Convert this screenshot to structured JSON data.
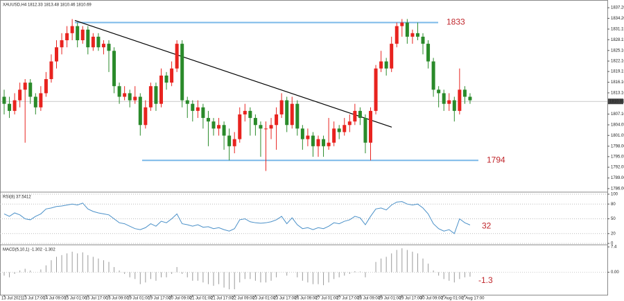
{
  "chart_data": [
    {
      "type": "candlestick",
      "title": "XAUUSD,H4 1812.33 1813.48 1810.46 1810.69",
      "categories": [
        "13 Jul 2021",
        null,
        null,
        null,
        "13 Jul 17:00",
        null,
        null,
        null,
        "14 Jul 09:00",
        null,
        null,
        null,
        "15 Jul 01:00",
        null,
        null,
        null,
        "15 Jul 17:00",
        null,
        null,
        null,
        "16 Jul 09:00",
        null,
        null,
        null,
        "19 Jul 01:00",
        null,
        null,
        null,
        "19 Jul 17:00",
        null,
        null,
        null,
        "20 Jul 09:00",
        null,
        null,
        null,
        "21 Jul 01:00",
        null,
        null,
        null,
        "21 Jul 17:00",
        null,
        null,
        null,
        "22 Jul 09:00",
        null,
        null,
        null,
        "23 Jul 01:00",
        null,
        null,
        null,
        "23 Jul 17:00",
        null,
        null,
        null,
        "26 Jul 09:00",
        null,
        null,
        null,
        "27 Jul 01:00",
        null,
        null,
        null,
        "27 Jul 17:00",
        null,
        null,
        null,
        "28 Jul 09:00",
        null,
        null,
        null,
        "29 Jul 01:00",
        null,
        null,
        null,
        "29 Jul 17:00",
        null,
        null,
        null,
        "30 Jul 09:00",
        null,
        null,
        null,
        "2 Aug 01:00",
        null,
        null,
        null,
        "2 Aug 17:00",
        null
      ],
      "candles": [
        [
          1812,
          1814,
          1807,
          1810
        ],
        [
          1810,
          1812,
          1806,
          1808
        ],
        [
          1808,
          1813,
          1807,
          1811
        ],
        [
          1811,
          1816,
          1809,
          1814
        ],
        [
          1814,
          1817,
          1799,
          1816
        ],
        [
          1816,
          1817,
          1810,
          1812
        ],
        [
          1812,
          1813,
          1807,
          1809
        ],
        [
          1809,
          1815,
          1808,
          1813
        ],
        [
          1813,
          1819,
          1812,
          1817
        ],
        [
          1817,
          1824,
          1816,
          1822
        ],
        [
          1822,
          1828,
          1820,
          1826
        ],
        [
          1826,
          1830,
          1824,
          1828
        ],
        [
          1828,
          1832,
          1826,
          1830
        ],
        [
          1830,
          1834,
          1828,
          1832
        ],
        [
          1832,
          1833,
          1826,
          1828
        ],
        [
          1828,
          1832,
          1827,
          1831
        ],
        [
          1831,
          1832,
          1824,
          1826
        ],
        [
          1826,
          1830,
          1825,
          1829
        ],
        [
          1829,
          1830,
          1825,
          1826
        ],
        [
          1826,
          1828,
          1824,
          1827
        ],
        [
          1827,
          1828,
          1819,
          1825
        ],
        [
          1825,
          1826,
          1813,
          1815
        ],
        [
          1815,
          1816,
          1810,
          1812
        ],
        [
          1812,
          1815,
          1811,
          1813
        ],
        [
          1813,
          1814,
          1809,
          1811
        ],
        [
          1811,
          1815,
          1810,
          1812
        ],
        [
          1812,
          1813,
          1801,
          1804
        ],
        [
          1804,
          1811,
          1803,
          1809
        ],
        [
          1809,
          1816,
          1808,
          1815
        ],
        [
          1815,
          1816,
          1808,
          1810
        ],
        [
          1810,
          1820,
          1809,
          1818
        ],
        [
          1818,
          1819,
          1814,
          1816
        ],
        [
          1816,
          1822,
          1815,
          1820
        ],
        [
          1820,
          1828,
          1819,
          1827
        ],
        [
          1827,
          1828,
          1809,
          1811
        ],
        [
          1811,
          1812,
          1806,
          1810
        ],
        [
          1810,
          1811,
          1805,
          1808
        ],
        [
          1808,
          1811,
          1806,
          1809
        ],
        [
          1809,
          1810,
          1803,
          1806
        ],
        [
          1806,
          1808,
          1798,
          1805
        ],
        [
          1805,
          1806,
          1801,
          1803
        ],
        [
          1803,
          1806,
          1801,
          1804
        ],
        [
          1804,
          1805,
          1797,
          1801
        ],
        [
          1801,
          1803,
          1794,
          1798
        ],
        [
          1798,
          1802,
          1796,
          1800
        ],
        [
          1800,
          1809,
          1799,
          1807
        ],
        [
          1807,
          1810,
          1805,
          1808
        ],
        [
          1808,
          1809,
          1801,
          1806
        ],
        [
          1806,
          1807,
          1801,
          1804
        ],
        [
          1804,
          1805,
          1795,
          1803
        ],
        [
          1803,
          1805,
          1791,
          1803
        ],
        [
          1803,
          1806,
          1800,
          1804
        ],
        [
          1804,
          1809,
          1797,
          1807
        ],
        [
          1807,
          1813,
          1806,
          1811
        ],
        [
          1811,
          1812,
          1802,
          1804
        ],
        [
          1804,
          1812,
          1803,
          1810
        ],
        [
          1810,
          1811,
          1801,
          1803
        ],
        [
          1803,
          1804,
          1797,
          1800
        ],
        [
          1800,
          1803,
          1798,
          1801
        ],
        [
          1801,
          1802,
          1795,
          1798
        ],
        [
          1798,
          1801,
          1795,
          1800
        ],
        [
          1800,
          1801,
          1795,
          1798
        ],
        [
          1798,
          1806,
          1797,
          1799
        ],
        [
          1799,
          1805,
          1798,
          1803
        ],
        [
          1803,
          1804,
          1800,
          1802
        ],
        [
          1802,
          1806,
          1801,
          1804
        ],
        [
          1804,
          1807,
          1802,
          1805
        ],
        [
          1805,
          1810,
          1804,
          1808
        ],
        [
          1808,
          1809,
          1804,
          1806
        ],
        [
          1806,
          1807,
          1796,
          1799
        ],
        [
          1799,
          1809,
          1794,
          1808
        ],
        [
          1808,
          1821,
          1807,
          1820
        ],
        [
          1820,
          1825,
          1819,
          1822
        ],
        [
          1822,
          1823,
          1818,
          1820
        ],
        [
          1820,
          1829,
          1819,
          1827
        ],
        [
          1827,
          1833,
          1826,
          1832
        ],
        [
          1832,
          1834,
          1829,
          1833
        ],
        [
          1833,
          1834,
          1827,
          1829
        ],
        [
          1829,
          1831,
          1827,
          1830
        ],
        [
          1830,
          1833,
          1828,
          1829
        ],
        [
          1829,
          1830,
          1824,
          1827
        ],
        [
          1827,
          1828,
          1820,
          1822
        ],
        [
          1822,
          1823,
          1812,
          1814
        ],
        [
          1814,
          1815,
          1809,
          1813
        ],
        [
          1813,
          1814,
          1808,
          1810
        ],
        [
          1810,
          1813,
          1808,
          1811
        ],
        [
          1811,
          1812,
          1805,
          1808
        ],
        [
          1808,
          1820,
          1807,
          1814
        ],
        [
          1814,
          1815,
          1810,
          1812
        ],
        [
          1812,
          1813,
          1810,
          1811
        ]
      ],
      "up_color": "#e8231f",
      "down_color": "#2a8a2a",
      "ylim": [
        1785.4,
        1838.8
      ],
      "yticks": [
        {
          "value": 1837.2,
          "label": "1837.20"
        },
        {
          "value": 1834.2,
          "label": "1834.20"
        },
        {
          "value": 1831.15,
          "label": "1831.15"
        },
        {
          "value": 1828.15,
          "label": "1828.15"
        },
        {
          "value": 1825.1,
          "label": "1825.10"
        },
        {
          "value": 1822.1,
          "label": "1822.10"
        },
        {
          "value": 1819.15,
          "label": "1819.15"
        },
        {
          "value": 1816.1,
          "label": "1816.10"
        },
        {
          "value": 1813.1,
          "label": "1813.10"
        },
        {
          "value": 1807.1,
          "label": "1807.10"
        },
        {
          "value": 1804.05,
          "label": "1804.05"
        },
        {
          "value": 1801.05,
          "label": "1801.05"
        },
        {
          "value": 1798,
          "label": "1798.00"
        },
        {
          "value": 1795.05,
          "label": "1795.05"
        },
        {
          "value": 1792.05,
          "label": "1792.05"
        },
        {
          "value": 1789,
          "label": "1789.00"
        },
        {
          "value": 1786,
          "label": "1786.00"
        }
      ],
      "last_price": 1810.69,
      "levels": [
        1833,
        1794
      ],
      "level_color": "#7ab8e8",
      "trendline": [
        1833.6,
        1803.4
      ],
      "trendline_color": "#000000"
    },
    {
      "type": "line",
      "title": "RSI(8) 37.5412",
      "values": [
        60,
        55,
        62,
        58,
        50,
        48,
        55,
        60,
        70,
        72,
        75,
        76,
        78,
        80,
        78,
        82,
        70,
        65,
        62,
        60,
        58,
        50,
        42,
        40,
        35,
        30,
        28,
        32,
        40,
        35,
        45,
        42,
        50,
        60,
        40,
        38,
        35,
        38,
        33,
        34,
        30,
        32,
        28,
        25,
        30,
        48,
        50,
        44,
        42,
        41,
        42,
        44,
        48,
        55,
        40,
        52,
        38,
        30,
        32,
        28,
        32,
        30,
        35,
        42,
        40,
        45,
        48,
        55,
        52,
        38,
        55,
        70,
        72,
        68,
        78,
        84,
        85,
        80,
        78,
        80,
        72,
        60,
        40,
        30,
        25,
        28,
        20,
        50,
        42,
        37.5
      ],
      "color": "#4a90c8",
      "ylim": [
        0,
        100
      ],
      "yticks": [
        0,
        20,
        50,
        80,
        100
      ],
      "grid": true,
      "annotation": 32
    },
    {
      "type": "bar",
      "title": "MACD(5,10,1) -1.302 -1.302",
      "values": [
        -1,
        -1.5,
        -0.5,
        0.5,
        1,
        0.5,
        0,
        0.8,
        2,
        3.5,
        4.5,
        5,
        5.5,
        6,
        5.5,
        5.8,
        5,
        4.5,
        4,
        3.5,
        3,
        1.5,
        0.5,
        -0.5,
        -1.5,
        -2,
        -3.5,
        -3,
        -2,
        -2.5,
        -1.5,
        -1.5,
        -0.5,
        1.5,
        -0.5,
        -1.5,
        -2.5,
        -2.5,
        -3,
        -3.5,
        -4,
        -3.5,
        -4.5,
        -5,
        -5,
        -3,
        -2,
        -2,
        -2.5,
        -3,
        -3,
        -2.5,
        -1.5,
        0,
        -1,
        0,
        -1.5,
        -2.5,
        -3,
        -3.5,
        -3.5,
        -3.8,
        -3,
        -2,
        -1.5,
        -1,
        -0.5,
        0.3,
        0.2,
        -1.5,
        0,
        3,
        4,
        4.5,
        5.5,
        6.5,
        7,
        6.5,
        6,
        5.5,
        4,
        2.5,
        0.5,
        -1,
        -2,
        -2.5,
        -3,
        -2,
        -1.5,
        -1.3
      ],
      "color": "#9a9a9a",
      "ylim": [
        -6.4,
        7.4
      ],
      "yticks": [
        7.4,
        {
          "value": 0,
          "label": "0.00"
        }
      ],
      "annotation": -1.3
    }
  ]
}
